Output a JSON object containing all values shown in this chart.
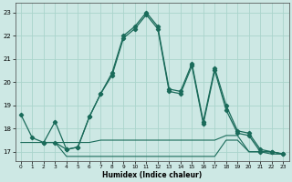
{
  "xlabel": "Humidex (Indice chaleur)",
  "background_color": "#cde8e4",
  "grid_color": "#aad4cc",
  "line_color": "#1a6b5a",
  "xlim": [
    -0.5,
    23.5
  ],
  "ylim": [
    16.6,
    23.4
  ],
  "yticks": [
    17,
    18,
    19,
    20,
    21,
    22,
    23
  ],
  "xticks": [
    0,
    1,
    2,
    3,
    4,
    5,
    6,
    7,
    8,
    9,
    10,
    11,
    12,
    13,
    14,
    15,
    16,
    17,
    18,
    19,
    20,
    21,
    22,
    23
  ],
  "series1_x": [
    0,
    1,
    2,
    3,
    4,
    5,
    6,
    7,
    8,
    9,
    10,
    11,
    12,
    13,
    14,
    15,
    16,
    17,
    18,
    19,
    20,
    21,
    22,
    23
  ],
  "series1_y": [
    18.6,
    17.6,
    17.4,
    18.3,
    17.1,
    17.2,
    18.5,
    19.5,
    20.4,
    22.0,
    22.4,
    23.0,
    22.4,
    19.7,
    19.6,
    20.8,
    18.3,
    20.6,
    19.0,
    17.9,
    17.8,
    17.1,
    17.0,
    16.9
  ],
  "series2_x": [
    2,
    3,
    4,
    5,
    6,
    7,
    8,
    9,
    10,
    11,
    12,
    13,
    14,
    15,
    16,
    17,
    18,
    19,
    20,
    21,
    22,
    23
  ],
  "series2_y": [
    17.4,
    17.4,
    17.1,
    17.2,
    18.5,
    19.5,
    20.3,
    21.9,
    22.3,
    22.9,
    22.3,
    19.6,
    19.5,
    20.7,
    18.2,
    20.5,
    18.8,
    17.8,
    17.7,
    17.0,
    17.0,
    16.9
  ],
  "series3_x": [
    0,
    1,
    2,
    3,
    4,
    5,
    6,
    7,
    8,
    9,
    10,
    11,
    12,
    13,
    14,
    15,
    16,
    17,
    18,
    19,
    20,
    21,
    22,
    23
  ],
  "series3_y": [
    17.4,
    17.4,
    17.4,
    17.4,
    17.4,
    17.4,
    17.4,
    17.5,
    17.5,
    17.5,
    17.5,
    17.5,
    17.5,
    17.5,
    17.5,
    17.5,
    17.5,
    17.5,
    17.7,
    17.7,
    17.0,
    17.0,
    17.0,
    16.9
  ],
  "series4_x": [
    3,
    4,
    5,
    6,
    7,
    8,
    9,
    10,
    11,
    12,
    13,
    14,
    15,
    16,
    17,
    18,
    19,
    20,
    21,
    22,
    23
  ],
  "series4_y": [
    17.4,
    16.8,
    16.8,
    16.8,
    16.8,
    16.8,
    16.8,
    16.8,
    16.8,
    16.8,
    16.8,
    16.8,
    16.8,
    16.8,
    16.8,
    17.5,
    17.5,
    17.0,
    17.0,
    16.9,
    16.9
  ]
}
